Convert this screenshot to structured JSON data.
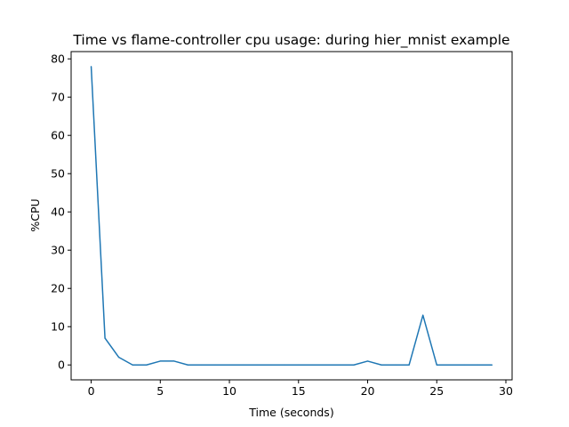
{
  "chart_data": {
    "type": "line",
    "title": "Time vs flame-controller cpu usage: during hier_mnist example",
    "xlabel": "Time (seconds)",
    "ylabel": "%CPU",
    "xlim": [
      -1.45,
      30.45
    ],
    "ylim": [
      -3.9,
      81.9
    ],
    "xticks": [
      0,
      5,
      10,
      15,
      20,
      25,
      30
    ],
    "yticks": [
      0,
      10,
      20,
      30,
      40,
      50,
      60,
      70,
      80
    ],
    "grid": false,
    "legend": "none",
    "series": [
      {
        "color": "#1f77b4",
        "x": [
          0,
          1,
          2,
          3,
          4,
          5,
          6,
          7,
          8,
          9,
          10,
          11,
          12,
          13,
          14,
          15,
          16,
          17,
          18,
          19,
          20,
          21,
          22,
          23,
          24,
          25,
          26,
          27,
          28,
          29
        ],
        "y": [
          78,
          7,
          2,
          0,
          0,
          1,
          1,
          0,
          0,
          0,
          0,
          0,
          0,
          0,
          0,
          0,
          0,
          0,
          0,
          0,
          1,
          0,
          0,
          0,
          13,
          0,
          0,
          0,
          0,
          0
        ]
      }
    ]
  }
}
